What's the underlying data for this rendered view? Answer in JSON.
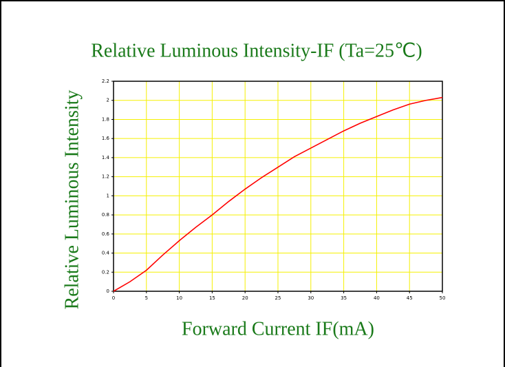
{
  "chart_data": {
    "type": "line",
    "title": "Relative Luminous Intensity-IF (Ta=25℃)",
    "x_label": "Forward Current IF(mA)",
    "y_label": "Relative Luminous Intensity",
    "series": [
      {
        "name": "Relative Luminous Intensity",
        "color": "#ff0000",
        "x": [
          0,
          2.5,
          5,
          7.5,
          10,
          12.5,
          15,
          17.5,
          20,
          22.5,
          25,
          27.5,
          30,
          32.5,
          35,
          37.5,
          40,
          42.5,
          45,
          47.5,
          50
        ],
        "values": [
          0,
          0.1,
          0.22,
          0.38,
          0.53,
          0.67,
          0.8,
          0.94,
          1.07,
          1.19,
          1.3,
          1.41,
          1.5,
          1.59,
          1.68,
          1.76,
          1.83,
          1.9,
          1.96,
          2.0,
          2.03
        ]
      }
    ],
    "xlim": [
      0,
      50
    ],
    "xticks": [
      0,
      5,
      10,
      15,
      20,
      25,
      30,
      35,
      40,
      45,
      50
    ],
    "ylim": [
      0,
      2.2
    ],
    "yticks": [
      0,
      0.2,
      0.4,
      0.6,
      0.8,
      1,
      1.2,
      1.4,
      1.6,
      1.8,
      2,
      2.2
    ],
    "grid": true,
    "grid_color": "#f5f000"
  }
}
